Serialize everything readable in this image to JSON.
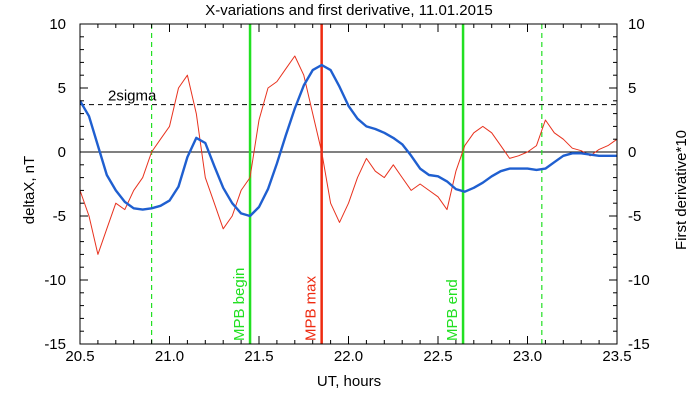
{
  "chart_data": {
    "type": "line",
    "title": "X-variations and first derivative, 11.01.2015",
    "xlabel": "UT, hours",
    "ylabel_left": "deltaX, nT",
    "ylabel_right": "First derivative*10",
    "xlim": [
      20.5,
      23.5
    ],
    "ylim": [
      -15,
      10
    ],
    "x_ticks": [
      20.5,
      21.0,
      21.5,
      22.0,
      22.5,
      23.0,
      23.5
    ],
    "x_tick_labels": [
      "20.5",
      "21.0",
      "21.5",
      "22.0",
      "22.5",
      "23.0",
      "23.5"
    ],
    "y_ticks": [
      -15,
      -10,
      -5,
      0,
      5,
      10
    ],
    "y_tick_labels": [
      "-15",
      "-10",
      "-5",
      "0",
      "5",
      "10"
    ],
    "grid": false,
    "colors": {
      "deltaX": "#1f5fd0",
      "derivative": "#e8321e",
      "mpb_lines": "#22e022",
      "mpb_max": "#ee2a10",
      "sigma": "#000000",
      "ylabel_left": "#1f5fd0",
      "ylabel_right": "#e8321e"
    },
    "threshold": {
      "value": 3.7,
      "label": "2sigma"
    },
    "zero_line": 0,
    "dashed_verticals": [
      20.9,
      23.08
    ],
    "vertical_markers": [
      {
        "x": 21.45,
        "label": "MPB begin",
        "color": "#22e022"
      },
      {
        "x": 21.85,
        "label": "MPB max",
        "color": "#ee2a10"
      },
      {
        "x": 22.64,
        "label": "MPB end",
        "color": "#22e022"
      }
    ],
    "series": [
      {
        "key": "deltaX",
        "x": [
          20.5,
          20.55,
          20.6,
          20.65,
          20.7,
          20.75,
          20.8,
          20.85,
          20.9,
          20.95,
          21.0,
          21.05,
          21.1,
          21.15,
          21.2,
          21.25,
          21.3,
          21.35,
          21.4,
          21.45,
          21.5,
          21.55,
          21.6,
          21.65,
          21.7,
          21.75,
          21.8,
          21.85,
          21.9,
          21.95,
          22.0,
          22.05,
          22.1,
          22.15,
          22.2,
          22.25,
          22.3,
          22.35,
          22.4,
          22.45,
          22.5,
          22.55,
          22.6,
          22.65,
          22.7,
          22.75,
          22.8,
          22.85,
          22.9,
          22.95,
          23.0,
          23.05,
          23.1,
          23.15,
          23.2,
          23.25,
          23.3,
          23.35,
          23.4,
          23.45,
          23.5
        ],
        "values": [
          4.0,
          2.8,
          0.5,
          -1.8,
          -3.0,
          -3.9,
          -4.4,
          -4.5,
          -4.4,
          -4.2,
          -3.8,
          -2.7,
          -0.4,
          1.1,
          0.7,
          -1.1,
          -2.8,
          -4.0,
          -4.8,
          -5.0,
          -4.3,
          -2.9,
          -0.9,
          1.3,
          3.4,
          5.2,
          6.4,
          6.8,
          6.4,
          5.1,
          3.6,
          2.6,
          2.0,
          1.8,
          1.5,
          1.1,
          0.6,
          -0.3,
          -1.3,
          -1.8,
          -1.9,
          -2.3,
          -2.9,
          -3.1,
          -2.8,
          -2.4,
          -1.9,
          -1.5,
          -1.3,
          -1.3,
          -1.3,
          -1.4,
          -1.3,
          -0.8,
          -0.3,
          -0.1,
          -0.1,
          -0.2,
          -0.3,
          -0.3,
          -0.3
        ]
      },
      {
        "key": "derivative",
        "x": [
          20.5,
          20.55,
          20.6,
          20.65,
          20.7,
          20.75,
          20.8,
          20.85,
          20.9,
          20.95,
          21.0,
          21.05,
          21.1,
          21.15,
          21.2,
          21.25,
          21.3,
          21.35,
          21.4,
          21.45,
          21.5,
          21.55,
          21.6,
          21.65,
          21.7,
          21.75,
          21.8,
          21.85,
          21.9,
          21.95,
          22.0,
          22.05,
          22.1,
          22.15,
          22.2,
          22.25,
          22.3,
          22.35,
          22.4,
          22.45,
          22.5,
          22.55,
          22.6,
          22.65,
          22.7,
          22.75,
          22.8,
          22.85,
          22.9,
          22.95,
          23.0,
          23.05,
          23.1,
          23.15,
          23.2,
          23.25,
          23.3,
          23.35,
          23.4,
          23.45,
          23.5
        ],
        "values": [
          -3.0,
          -5.0,
          -8.0,
          -6.0,
          -4.0,
          -4.5,
          -3.0,
          -2.0,
          0.0,
          1.0,
          2.0,
          5.0,
          6.0,
          3.0,
          -2.0,
          -4.0,
          -6.0,
          -5.0,
          -3.0,
          -2.0,
          2.5,
          5.0,
          5.5,
          6.5,
          7.5,
          6.0,
          3.0,
          0.0,
          -4.0,
          -5.5,
          -4.0,
          -2.0,
          -0.5,
          -1.5,
          -2.0,
          -1.0,
          -2.0,
          -3.0,
          -2.5,
          -3.0,
          -3.5,
          -4.5,
          -1.5,
          0.5,
          1.5,
          2.0,
          1.5,
          0.5,
          -0.5,
          -0.3,
          0.0,
          0.5,
          2.5,
          1.5,
          1.0,
          0.3,
          0.1,
          -0.3,
          0.2,
          0.5,
          1.0
        ]
      }
    ]
  }
}
